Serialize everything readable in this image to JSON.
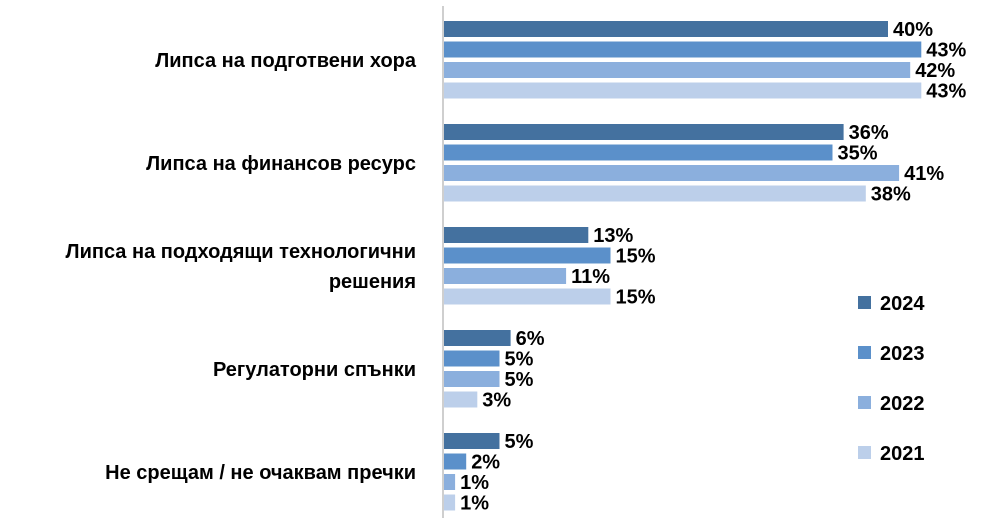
{
  "chart_data": {
    "type": "bar",
    "orientation": "horizontal",
    "categories": [
      [
        "Липса на подготвени хора"
      ],
      [
        "Липса на финансов ресурс"
      ],
      [
        "Липса на подходящи технологични",
        "решения"
      ],
      [
        "Регулаторни спънки"
      ],
      [
        "Не срещам / не очаквам пречки"
      ]
    ],
    "series": [
      {
        "name": "2024",
        "color": "#44719F",
        "values": [
          40,
          36,
          13,
          6,
          5
        ]
      },
      {
        "name": "2023",
        "color": "#5B90CA",
        "values": [
          43,
          35,
          15,
          5,
          2
        ]
      },
      {
        "name": "2022",
        "color": "#8BAFDD",
        "values": [
          42,
          41,
          11,
          5,
          1
        ]
      },
      {
        "name": "2021",
        "color": "#BCCFEA",
        "values": [
          43,
          38,
          15,
          3,
          1
        ]
      }
    ],
    "value_suffix": "%",
    "xlim": [
      0,
      50
    ],
    "grid": false,
    "legend_position": "right"
  }
}
